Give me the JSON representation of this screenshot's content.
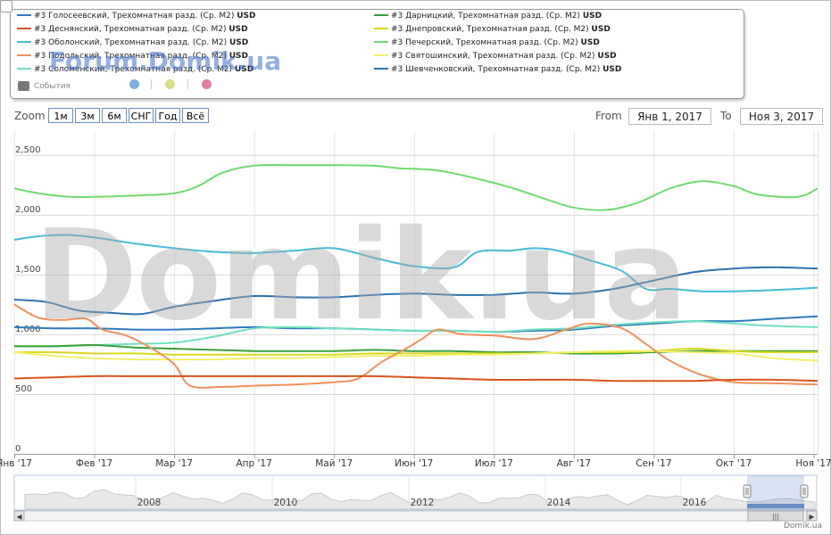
{
  "legend": {
    "items": [
      {
        "name": "#3 Голосеевский, Трехомнатная разд. (Ср. M2)",
        "unit": "USD",
        "color": "#2f7bbf",
        "x": 18,
        "y": 16
      },
      {
        "name": "#3 Деснянский, Трехомнатная разд. (Ср. M2)",
        "unit": "USD",
        "color": "#d9541e",
        "x": 18,
        "y": 31
      },
      {
        "name": "#3 Оболонский, Трехомнатная разд. (Ср. M2)",
        "unit": "USD",
        "color": "#44bcd8",
        "x": 18,
        "y": 46
      },
      {
        "name": "#3 Подольский, Трехомнатная разд. (Ср. M2)",
        "unit": "USD",
        "color": "#f0905a",
        "x": 18,
        "y": 61
      },
      {
        "name": "#3 Соломенский, Трехомнатная разд. (Ср. M2)",
        "unit": "USD",
        "color": "#6fe0c0",
        "x": 18,
        "y": 76
      },
      {
        "name": "#3 Дарницкий, Трехомнатная разд. (Ср. M2)",
        "unit": "USD",
        "color": "#3aa03a",
        "x": 418,
        "y": 16
      },
      {
        "name": "#3 Днепровский, Трехомнатная разд. (Ср. M2)",
        "unit": "USD",
        "color": "#d8d820",
        "x": 418,
        "y": 31
      },
      {
        "name": "#3 Печерский, Трехомнатная разд. (Ср. M2)",
        "unit": "USD",
        "color": "#6edc6e",
        "x": 418,
        "y": 46
      },
      {
        "name": "#3 Святошинский, Трехомнатная разд. (Ср. M2)",
        "unit": "USD",
        "color": "#f3f06a",
        "x": 418,
        "y": 61
      },
      {
        "name": "#3 Шевченковский, Трехомнатная разд. (Ср. M2)",
        "unit": "USD",
        "color": "#2a73b0",
        "x": 418,
        "y": 76
      }
    ],
    "events_label": "События",
    "event_colors": [
      "#7fafe0",
      "#d8e08a",
      "#e07fa0"
    ]
  },
  "watermark_top": "Forum.Domik.ua",
  "watermark": "Domik.ua",
  "zoom": {
    "label": "Zoom",
    "buttons": [
      "1м",
      "3м",
      "6м",
      "СНГ",
      "Год",
      "Всё"
    ]
  },
  "range": {
    "from_label": "From",
    "from": "Янв 1, 2017",
    "to_label": "To",
    "to": "Ноя 3, 2017"
  },
  "credit": "Domik.ua",
  "chart_data": {
    "type": "line",
    "title": "",
    "xlabel": "",
    "ylabel": "",
    "x_ticks": [
      "Янв '17",
      "Фев '17",
      "Мар '17",
      "Апр '17",
      "Май '17",
      "Июн '17",
      "Июл '17",
      "Авг '17",
      "Сен '17",
      "Окт '17",
      "Ноя '17"
    ],
    "y_ticks": [
      0,
      500,
      1000,
      1500,
      2000,
      2500
    ],
    "y_tick_labels": [
      "0",
      "500",
      "1,000",
      "1,500",
      "2,000",
      "2,500"
    ],
    "ylim": [
      0,
      2700
    ],
    "xlim": [
      0,
      10.05
    ],
    "grid": true,
    "series": [
      {
        "name": "#3 Печерский, Трехомнатная разд. (Ср. M2)",
        "color": "#6edc6e",
        "points": [
          [
            0,
            2220
          ],
          [
            0.3,
            2180
          ],
          [
            0.7,
            2150
          ],
          [
            1,
            2150
          ],
          [
            1.5,
            2160
          ],
          [
            2,
            2180
          ],
          [
            2.3,
            2240
          ],
          [
            2.6,
            2350
          ],
          [
            3,
            2410
          ],
          [
            3.5,
            2415
          ],
          [
            4,
            2415
          ],
          [
            4.5,
            2410
          ],
          [
            4.8,
            2390
          ],
          [
            5.3,
            2370
          ],
          [
            5.8,
            2300
          ],
          [
            6.2,
            2230
          ],
          [
            6.7,
            2120
          ],
          [
            7,
            2060
          ],
          [
            7.4,
            2040
          ],
          [
            7.8,
            2100
          ],
          [
            8.2,
            2220
          ],
          [
            8.6,
            2280
          ],
          [
            9,
            2240
          ],
          [
            9.3,
            2170
          ],
          [
            9.8,
            2150
          ],
          [
            10.05,
            2220
          ]
        ]
      },
      {
        "name": "#3 Оболонский, Трехомнатная разд. (Ср. M2)",
        "color": "#44bcd8",
        "points": [
          [
            0,
            1790
          ],
          [
            0.3,
            1820
          ],
          [
            0.7,
            1830
          ],
          [
            1,
            1810
          ],
          [
            1.5,
            1760
          ],
          [
            2,
            1720
          ],
          [
            2.5,
            1690
          ],
          [
            3,
            1680
          ],
          [
            3.5,
            1700
          ],
          [
            4,
            1720
          ],
          [
            4.5,
            1640
          ],
          [
            5,
            1570
          ],
          [
            5.5,
            1560
          ],
          [
            5.8,
            1690
          ],
          [
            6.2,
            1700
          ],
          [
            6.5,
            1720
          ],
          [
            6.8,
            1700
          ],
          [
            7.2,
            1620
          ],
          [
            7.6,
            1530
          ],
          [
            7.9,
            1380
          ],
          [
            8.2,
            1380
          ],
          [
            8.6,
            1360
          ],
          [
            9,
            1360
          ],
          [
            9.5,
            1370
          ],
          [
            10.05,
            1390
          ]
        ]
      },
      {
        "name": "#3 Шевченковский, Трехомнатная разд. (Ср. M2)",
        "color": "#2a73b0",
        "points": [
          [
            0,
            1290
          ],
          [
            0.4,
            1270
          ],
          [
            0.8,
            1200
          ],
          [
            1.2,
            1180
          ],
          [
            1.6,
            1170
          ],
          [
            2,
            1230
          ],
          [
            2.5,
            1280
          ],
          [
            3,
            1320
          ],
          [
            3.5,
            1310
          ],
          [
            4,
            1310
          ],
          [
            4.5,
            1330
          ],
          [
            5,
            1340
          ],
          [
            5.5,
            1330
          ],
          [
            6,
            1330
          ],
          [
            6.5,
            1350
          ],
          [
            7,
            1340
          ],
          [
            7.5,
            1380
          ],
          [
            8,
            1450
          ],
          [
            8.5,
            1520
          ],
          [
            9,
            1550
          ],
          [
            9.5,
            1560
          ],
          [
            10.05,
            1550
          ]
        ]
      },
      {
        "name": "#3 Голосеевский, Трехомнатная разд. (Ср. M2)",
        "color": "#2f7bbf",
        "points": [
          [
            0,
            1060
          ],
          [
            0.5,
            1050
          ],
          [
            1,
            1050
          ],
          [
            1.5,
            1040
          ],
          [
            2,
            1040
          ],
          [
            2.5,
            1050
          ],
          [
            3,
            1060
          ],
          [
            3.5,
            1050
          ],
          [
            4,
            1050
          ],
          [
            4.5,
            1040
          ],
          [
            5,
            1030
          ],
          [
            5.5,
            1030
          ],
          [
            6,
            1020
          ],
          [
            6.5,
            1030
          ],
          [
            7,
            1040
          ],
          [
            7.5,
            1070
          ],
          [
            8,
            1090
          ],
          [
            8.5,
            1110
          ],
          [
            9,
            1110
          ],
          [
            9.5,
            1130
          ],
          [
            10.05,
            1150
          ]
        ]
      },
      {
        "name": "#3 Соломенский, Трехомнатная разд. (Ср. M2)",
        "color": "#6fe0c0",
        "points": [
          [
            0,
            900
          ],
          [
            0.5,
            900
          ],
          [
            1,
            910
          ],
          [
            1.5,
            920
          ],
          [
            2,
            930
          ],
          [
            2.5,
            980
          ],
          [
            3,
            1050
          ],
          [
            3.5,
            1060
          ],
          [
            4,
            1050
          ],
          [
            4.5,
            1040
          ],
          [
            5,
            1030
          ],
          [
            5.5,
            1030
          ],
          [
            6,
            1020
          ],
          [
            6.5,
            1040
          ],
          [
            7,
            1050
          ],
          [
            7.5,
            1080
          ],
          [
            8,
            1100
          ],
          [
            8.5,
            1110
          ],
          [
            9,
            1090
          ],
          [
            9.5,
            1070
          ],
          [
            10.05,
            1060
          ]
        ]
      },
      {
        "name": "#3 Дарницкий, Трехомнатная разд. (Ср. M2)",
        "color": "#3aa03a",
        "points": [
          [
            0,
            900
          ],
          [
            0.5,
            900
          ],
          [
            1,
            910
          ],
          [
            1.5,
            890
          ],
          [
            2,
            880
          ],
          [
            2.5,
            870
          ],
          [
            3,
            860
          ],
          [
            3.5,
            860
          ],
          [
            4,
            860
          ],
          [
            4.5,
            870
          ],
          [
            5,
            860
          ],
          [
            5.5,
            860
          ],
          [
            6,
            850
          ],
          [
            6.5,
            850
          ],
          [
            7,
            840
          ],
          [
            7.5,
            840
          ],
          [
            8,
            850
          ],
          [
            8.5,
            860
          ],
          [
            9,
            860
          ],
          [
            9.5,
            860
          ],
          [
            10.05,
            860
          ]
        ]
      },
      {
        "name": "#3 Днепровский, Трехомнатная разд. (Ср. M2)",
        "color": "#d8d820",
        "points": [
          [
            0,
            850
          ],
          [
            0.5,
            850
          ],
          [
            1,
            840
          ],
          [
            1.5,
            840
          ],
          [
            2,
            830
          ],
          [
            2.5,
            830
          ],
          [
            3,
            830
          ],
          [
            3.5,
            830
          ],
          [
            4,
            830
          ],
          [
            4.5,
            840
          ],
          [
            5,
            840
          ],
          [
            5.5,
            840
          ],
          [
            6,
            840
          ],
          [
            6.5,
            840
          ],
          [
            7,
            850
          ],
          [
            7.5,
            850
          ],
          [
            8,
            860
          ],
          [
            8.5,
            880
          ],
          [
            9,
            860
          ],
          [
            9.5,
            850
          ],
          [
            10.05,
            850
          ]
        ]
      },
      {
        "name": "#3 Святошинский, Трехомнатная разд. (Ср. M2)",
        "color": "#f3f06a",
        "points": [
          [
            0,
            850
          ],
          [
            0.5,
            820
          ],
          [
            1,
            800
          ],
          [
            1.5,
            790
          ],
          [
            2,
            790
          ],
          [
            2.5,
            790
          ],
          [
            3,
            800
          ],
          [
            3.5,
            800
          ],
          [
            4,
            810
          ],
          [
            4.5,
            820
          ],
          [
            5,
            820
          ],
          [
            5.5,
            830
          ],
          [
            6,
            830
          ],
          [
            6.5,
            840
          ],
          [
            7,
            850
          ],
          [
            7.5,
            860
          ],
          [
            8,
            860
          ],
          [
            8.5,
            850
          ],
          [
            9,
            840
          ],
          [
            9.5,
            800
          ],
          [
            10.05,
            780
          ]
        ]
      },
      {
        "name": "#3 Подольский, Трехомнатная разд. (Ср. M2)",
        "color": "#f0905a",
        "points": [
          [
            0,
            1250
          ],
          [
            0.3,
            1140
          ],
          [
            0.6,
            1120
          ],
          [
            0.9,
            1130
          ],
          [
            1.1,
            1040
          ],
          [
            1.4,
            990
          ],
          [
            1.7,
            890
          ],
          [
            2,
            750
          ],
          [
            2.2,
            570
          ],
          [
            2.6,
            560
          ],
          [
            3,
            570
          ],
          [
            3.5,
            580
          ],
          [
            4,
            600
          ],
          [
            4.3,
            630
          ],
          [
            4.6,
            770
          ],
          [
            4.9,
            880
          ],
          [
            5.1,
            960
          ],
          [
            5.3,
            1040
          ],
          [
            5.6,
            1000
          ],
          [
            6,
            990
          ],
          [
            6.5,
            960
          ],
          [
            6.9,
            1040
          ],
          [
            7.2,
            1090
          ],
          [
            7.6,
            1050
          ],
          [
            7.9,
            920
          ],
          [
            8.2,
            780
          ],
          [
            8.6,
            660
          ],
          [
            9,
            600
          ],
          [
            9.5,
            590
          ],
          [
            10.05,
            580
          ]
        ]
      },
      {
        "name": "#3 Деснянский, Трехомнатная разд. (Ср. M2)",
        "color": "#d9541e",
        "points": [
          [
            0,
            630
          ],
          [
            0.5,
            640
          ],
          [
            1,
            650
          ],
          [
            1.5,
            650
          ],
          [
            2,
            650
          ],
          [
            2.5,
            650
          ],
          [
            3,
            650
          ],
          [
            3.5,
            650
          ],
          [
            4,
            650
          ],
          [
            4.5,
            650
          ],
          [
            5,
            640
          ],
          [
            5.5,
            630
          ],
          [
            6,
            620
          ],
          [
            6.5,
            620
          ],
          [
            7,
            620
          ],
          [
            7.5,
            610
          ],
          [
            8,
            610
          ],
          [
            8.5,
            610
          ],
          [
            9,
            620
          ],
          [
            9.5,
            620
          ],
          [
            10.05,
            610
          ]
        ]
      }
    ]
  },
  "navigator": {
    "labels": [
      "2008",
      "2010",
      "2012",
      "2014",
      "2016"
    ]
  }
}
